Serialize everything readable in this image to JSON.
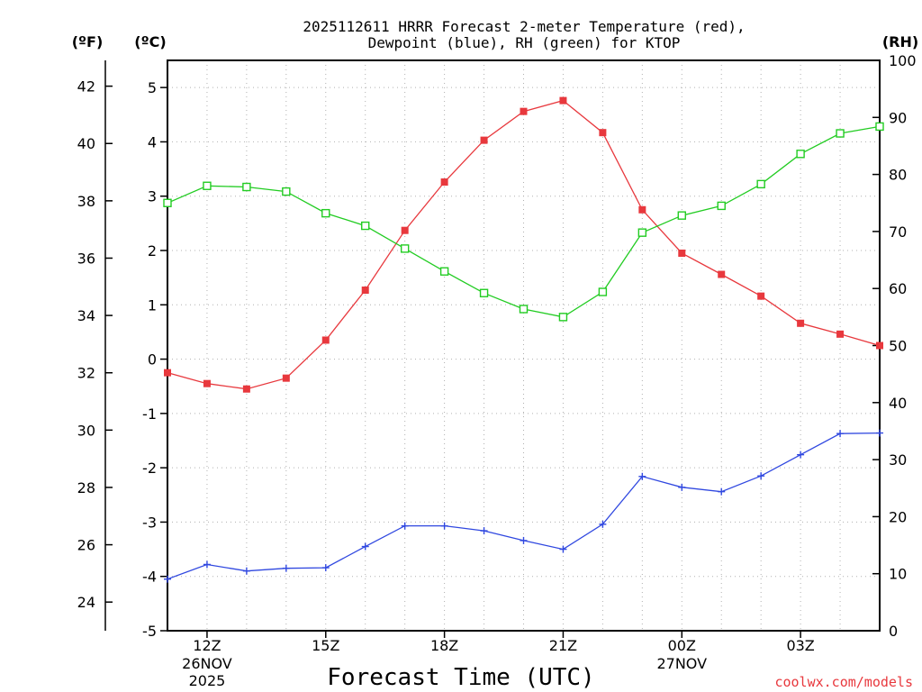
{
  "chart_data": {
    "type": "line",
    "title_line1": "2025112611 HRRR Forecast 2-meter Temperature (red),",
    "title_line2": "Dewpoint (blue), RH (green) for KTOP",
    "xlabel": "Forecast Time (UTC)",
    "credit": "coolwx.com/models",
    "units": {
      "fahrenheit": "(ºF)",
      "celsius": "(ºC)",
      "rh": "(RH)"
    },
    "colors": {
      "temperature": "#e8383d",
      "dewpoint": "#3048e0",
      "rh": "#22cc22"
    },
    "x": [
      11,
      12,
      13,
      14,
      15,
      16,
      17,
      18,
      19,
      20,
      21,
      22,
      23,
      24,
      25,
      26,
      27,
      28,
      29
    ],
    "xlim": [
      11,
      29
    ],
    "ylim_c": [
      -5,
      5.5
    ],
    "ylim_f": [
      23,
      42.9
    ],
    "ylim_rh": [
      0,
      100
    ],
    "x_ticks": [
      {
        "x": 12,
        "line1": "12Z",
        "line2": "26NOV",
        "line3": "2025"
      },
      {
        "x": 15,
        "line1": "15Z",
        "line2": "",
        "line3": ""
      },
      {
        "x": 18,
        "line1": "18Z",
        "line2": "",
        "line3": ""
      },
      {
        "x": 21,
        "line1": "21Z",
        "line2": "",
        "line3": ""
      },
      {
        "x": 24,
        "line1": "00Z",
        "line2": "27NOV",
        "line3": ""
      },
      {
        "x": 27,
        "line1": "03Z",
        "line2": "",
        "line3": ""
      }
    ],
    "y_ticks_c": [
      "-5",
      "-4",
      "-3",
      "-2",
      "-1",
      "0",
      "1",
      "2",
      "3",
      "4",
      "5"
    ],
    "y_ticks_f": [
      "24",
      "26",
      "28",
      "30",
      "32",
      "34",
      "36",
      "38",
      "40",
      "42"
    ],
    "y_ticks_rh": [
      "0",
      "10",
      "20",
      "30",
      "40",
      "50",
      "60",
      "70",
      "80",
      "90",
      "100"
    ],
    "series": [
      {
        "name": "Temperature (°C)",
        "key": "temperature",
        "marker": "filled-square",
        "values": [
          -0.25,
          -0.45,
          -0.55,
          -0.35,
          0.35,
          1.27,
          2.37,
          3.26,
          4.03,
          4.56,
          4.76,
          4.17,
          2.75,
          1.95,
          1.56,
          1.16,
          0.66,
          0.46,
          0.25
        ]
      },
      {
        "name": "Dewpoint (°C)",
        "key": "dewpoint",
        "marker": "plus",
        "values": [
          -4.05,
          -3.78,
          -3.9,
          -3.85,
          -3.84,
          -3.45,
          -3.07,
          -3.07,
          -3.16,
          -3.34,
          -3.5,
          -3.04,
          -2.16,
          -2.36,
          -2.44,
          -2.15,
          -1.76,
          -1.37,
          -1.36
        ]
      },
      {
        "name": "RH (%)",
        "key": "rh",
        "marker": "open-square",
        "values": [
          75,
          78,
          77.8,
          77,
          73.2,
          71,
          67,
          63,
          59.2,
          56.4,
          55,
          59.4,
          69.8,
          72.8,
          74.5,
          78.3,
          83.6,
          87.2,
          88.4
        ]
      }
    ]
  }
}
